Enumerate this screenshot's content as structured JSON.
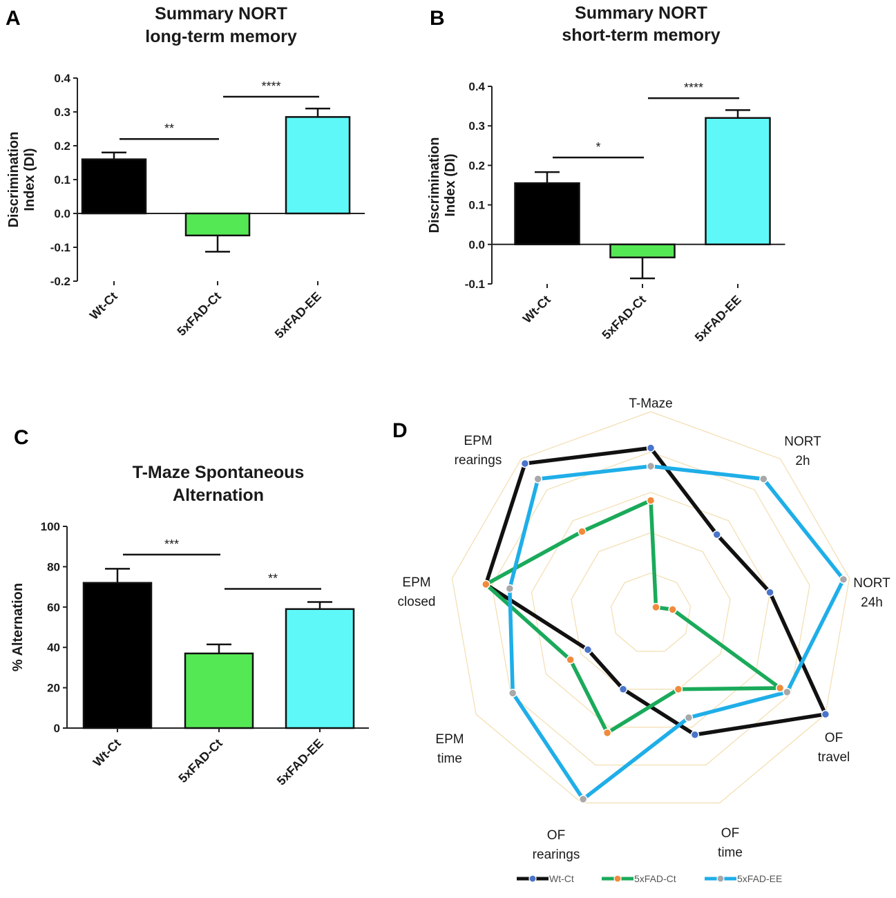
{
  "panels": {
    "a": "A",
    "b": "B",
    "c": "C",
    "d": "D"
  },
  "chart_data": [
    {
      "type": "bar",
      "panel": "A",
      "title": [
        "Summary NORT",
        "long-term memory"
      ],
      "ylabel": [
        "Discrimination",
        "Index (DI)"
      ],
      "categories": [
        "Wt-Ct",
        "5xFAD-Ct",
        "5xFAD-EE"
      ],
      "values": [
        0.16,
        -0.065,
        0.285
      ],
      "errors": [
        0.02,
        0.048,
        0.025
      ],
      "colors": [
        "#000000",
        "#55e855",
        "#5ef8f8"
      ],
      "ylim": [
        -0.2,
        0.4
      ],
      "yticks": [
        -0.2,
        -0.1,
        0.0,
        0.1,
        0.2,
        0.3,
        0.4
      ],
      "ytick_labels": [
        "-0.2",
        "-0.1",
        "0.0",
        "0.1",
        "0.2",
        "0.3",
        "0.4"
      ],
      "significance": [
        {
          "from": 0,
          "to": 1,
          "label": "**",
          "y": 0.22
        },
        {
          "from": 1,
          "to": 2,
          "label": "****",
          "y": 0.345
        }
      ]
    },
    {
      "type": "bar",
      "panel": "B",
      "title": [
        "Summary NORT",
        "short-term memory"
      ],
      "ylabel": [
        "Discrimination",
        "Index (DI)"
      ],
      "categories": [
        "Wt-Ct",
        "5xFAD-Ct",
        "5xFAD-EE"
      ],
      "values": [
        0.155,
        -0.033,
        0.32
      ],
      "errors": [
        0.028,
        0.053,
        0.02
      ],
      "colors": [
        "#000000",
        "#55e855",
        "#5ef8f8"
      ],
      "ylim": [
        -0.1,
        0.4
      ],
      "yticks": [
        -0.1,
        0.0,
        0.1,
        0.2,
        0.3,
        0.4
      ],
      "ytick_labels": [
        "-0.1",
        "0.0",
        "0.1",
        "0.2",
        "0.3",
        "0.4"
      ],
      "significance": [
        {
          "from": 0,
          "to": 1,
          "label": "*",
          "y": 0.22
        },
        {
          "from": 1,
          "to": 2,
          "label": "****",
          "y": 0.37
        }
      ]
    },
    {
      "type": "bar",
      "panel": "C",
      "title": [
        "T-Maze Spontaneous",
        "Alternation"
      ],
      "ylabel": [
        "% Alternation"
      ],
      "categories": [
        "Wt-Ct",
        "5xFAD-Ct",
        "5xFAD-EE"
      ],
      "values": [
        72,
        37,
        59
      ],
      "errors": [
        7,
        4.5,
        3.5
      ],
      "colors": [
        "#000000",
        "#55e855",
        "#5ef8f8"
      ],
      "ylim": [
        0,
        100
      ],
      "yticks": [
        0,
        20,
        40,
        60,
        80,
        100
      ],
      "ytick_labels": [
        "0",
        "20",
        "40",
        "60",
        "80",
        "100"
      ],
      "significance": [
        {
          "from": 0,
          "to": 1,
          "label": "***",
          "y": 86
        },
        {
          "from": 1,
          "to": 2,
          "label": "**",
          "y": 69
        }
      ]
    },
    {
      "type": "radar",
      "panel": "D",
      "axes": [
        "T-Maze",
        "NORT 2h",
        "NORT 24h",
        "OF travel",
        "OF time",
        "OF rearings",
        "EPM time",
        "EPM closed",
        "EPM rearings"
      ],
      "axis_label_lines": [
        [
          "T-Maze"
        ],
        [
          "NORT",
          "2h"
        ],
        [
          "NORT",
          "24h"
        ],
        [
          "OF",
          "travel"
        ],
        [
          "OF",
          "time"
        ],
        [
          "OF",
          "rearings"
        ],
        [
          "EPM",
          "time"
        ],
        [
          "EPM",
          "closed"
        ],
        [
          "EPM",
          "rearings"
        ]
      ],
      "rings": 5,
      "max": 1.0,
      "series": [
        {
          "name": "Wt-Ct",
          "color": "#111111",
          "marker": "#4a74c9",
          "values": [
            0.82,
            0.51,
            0.6,
            1.0,
            0.64,
            0.4,
            0.36,
            0.83,
            0.97
          ]
        },
        {
          "name": "5xFAD-Ct",
          "color": "#1aaa5a",
          "marker": "#f08a3c",
          "values": [
            0.56,
            0.04,
            0.11,
            0.74,
            0.4,
            0.63,
            0.46,
            0.83,
            0.53
          ]
        },
        {
          "name": "5xFAD-EE",
          "color": "#1faee8",
          "marker": "#a8a8a8",
          "values": [
            0.73,
            0.87,
            0.97,
            0.78,
            0.55,
            0.98,
            0.79,
            0.71,
            0.87
          ]
        }
      ],
      "legend": [
        "Wt-Ct",
        "5xFAD-Ct",
        "5xFAD-EE"
      ]
    }
  ]
}
